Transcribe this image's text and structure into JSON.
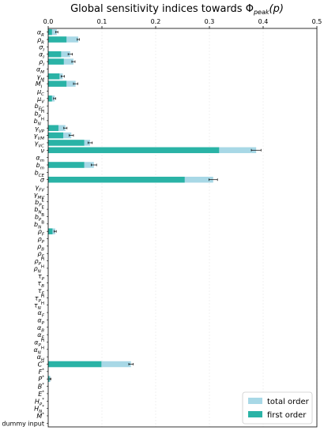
{
  "chart_data": {
    "type": "bar",
    "orientation": "horizontal",
    "stacked": false,
    "title": "Global sensitivity indices towards Φpeak(p)",
    "title_main": "Global sensitivity indices towards Φ",
    "title_sub": "peak",
    "title_tail": "(p)",
    "xlim": [
      0,
      0.5
    ],
    "xticks": [
      0,
      0.1,
      0.2,
      0.3,
      0.4,
      0.5
    ],
    "xtick_labels": [
      "0.0",
      "0.1",
      "0.2",
      "0.3",
      "0.4",
      "0.5"
    ],
    "x_axis_position": "top",
    "grid": true,
    "legend_position": "bottom-right",
    "categories": [
      {
        "b": "α",
        "sub": "R"
      },
      {
        "b": "ρ",
        "sub": "R"
      },
      {
        "b": "σ",
        "sub": "I"
      },
      {
        "b": "α",
        "sub": "I"
      },
      {
        "b": "ρ",
        "sub": "I"
      },
      {
        "b": "α",
        "sub": "M"
      },
      {
        "b": "γ",
        "sub": "M"
      },
      {
        "b": "M",
        "sub": "I",
        "sup": "*"
      },
      {
        "b": "μ",
        "sub": "C"
      },
      {
        "b": "μ",
        "sub": "V"
      },
      {
        "b": "b",
        "sub": "EC"
      },
      {
        "b": "b",
        "sub": "P",
        "sup": "H"
      },
      {
        "b": "b",
        "sub": "N",
        "sup": "H"
      },
      {
        "b": "γ",
        "sub": "VP"
      },
      {
        "b": "γ",
        "sub": "VM"
      },
      {
        "b": "γ",
        "sub": "VC"
      },
      {
        "b": "ν",
        "sub": ""
      },
      {
        "b": "α",
        "sub": "m"
      },
      {
        "b": "b",
        "sub": "m"
      },
      {
        "b": "b",
        "sub": "CE"
      },
      {
        "b": "σ",
        "sub": ""
      },
      {
        "b": "γ",
        "sub": "FV"
      },
      {
        "b": "γ",
        "sub": "MV"
      },
      {
        "b": "b",
        "sub": "P",
        "sup": "E"
      },
      {
        "b": "b",
        "sub": "N",
        "sup": "E"
      },
      {
        "b": "b",
        "sub": "P",
        "sup": "B"
      },
      {
        "b": "b",
        "sub": "N",
        "sup": "B"
      },
      {
        "b": "ρ",
        "sub": "F"
      },
      {
        "b": "ρ",
        "sub": "P"
      },
      {
        "b": "ρ",
        "sub": "B"
      },
      {
        "b": "ρ",
        "sub": "E"
      },
      {
        "b": "ρ",
        "sub": "P",
        "sup": "H"
      },
      {
        "b": "ρ",
        "sub": "N",
        "sup": "H"
      },
      {
        "b": "τ",
        "sub": "P"
      },
      {
        "b": "τ",
        "sub": "B"
      },
      {
        "b": "τ",
        "sub": "E"
      },
      {
        "b": "τ",
        "sub": "P",
        "sup": "H"
      },
      {
        "b": "τ",
        "sub": "N",
        "sup": "H"
      },
      {
        "b": "α",
        "sub": "F"
      },
      {
        "b": "α",
        "sub": "P"
      },
      {
        "b": "α",
        "sub": "B"
      },
      {
        "b": "α",
        "sub": "E"
      },
      {
        "b": "α",
        "sub": "P",
        "sup": "H"
      },
      {
        "b": "α",
        "sub": "N",
        "sup": "H"
      },
      {
        "b": "α",
        "sub": "H"
      },
      {
        "b": "C",
        "sub": "",
        "sup": "*"
      },
      {
        "b": "F",
        "sub": "",
        "sup": "*"
      },
      {
        "b": "P",
        "sub": "",
        "sup": "*"
      },
      {
        "b": "B",
        "sub": "",
        "sup": "*"
      },
      {
        "b": "E",
        "sub": "",
        "sup": "*"
      },
      {
        "b": "H",
        "sub": "P",
        "sup": "*"
      },
      {
        "b": "H",
        "sub": "N",
        "sup": "*"
      },
      {
        "b": "M",
        "sub": "",
        "sup": "*"
      },
      {
        "b": "dummy input",
        "sub": ""
      }
    ],
    "series": [
      {
        "name": "total order",
        "color": "#a8d8e6",
        "values": [
          0.016,
          0.056,
          0,
          0.041,
          0.047,
          0,
          0.027,
          0.051,
          0,
          0.012,
          0,
          0,
          0,
          0.032,
          0.043,
          0.078,
          0.387,
          0,
          0.085,
          0,
          0.307,
          0,
          0,
          0,
          0,
          0,
          0,
          0.013,
          0,
          0,
          0,
          0,
          0,
          0,
          0,
          0,
          0,
          0,
          0,
          0,
          0,
          0,
          0,
          0,
          0,
          0.154,
          0,
          0.004,
          0,
          0,
          0,
          0,
          0,
          0
        ],
        "errors": [
          0.002,
          0.002,
          0,
          0.004,
          0.003,
          0,
          0.003,
          0.004,
          0,
          0.002,
          0,
          0,
          0,
          0.003,
          0.004,
          0.004,
          0.009,
          0,
          0.005,
          0,
          0.008,
          0,
          0,
          0,
          0,
          0,
          0,
          0.002,
          0,
          0,
          0,
          0,
          0,
          0,
          0,
          0,
          0,
          0,
          0,
          0,
          0,
          0,
          0,
          0,
          0,
          0.004,
          0,
          0.001,
          0,
          0,
          0,
          0,
          0,
          0
        ]
      },
      {
        "name": "first order",
        "color": "#2ab3a6",
        "values": [
          0.007,
          0.034,
          0,
          0.024,
          0.029,
          0,
          0.021,
          0.034,
          0,
          0.007,
          0,
          0,
          0,
          0.019,
          0.028,
          0.067,
          0.318,
          0,
          0.067,
          0,
          0.254,
          0,
          0,
          0,
          0,
          0,
          0,
          0.008,
          0,
          0,
          0,
          0,
          0,
          0,
          0,
          0,
          0,
          0,
          0,
          0,
          0,
          0,
          0,
          0,
          0,
          0.099,
          0,
          0.002,
          0,
          0,
          0,
          0,
          0,
          0
        ]
      }
    ]
  }
}
